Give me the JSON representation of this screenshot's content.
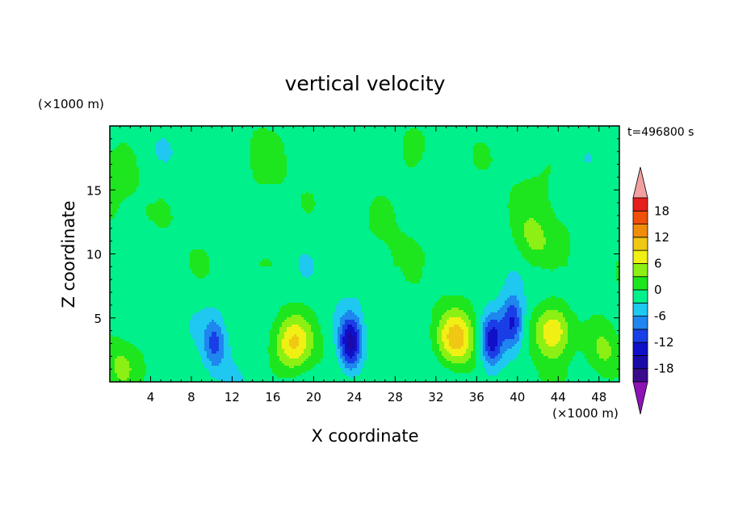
{
  "chart_data": {
    "type": "heatmap",
    "title": "vertical velocity",
    "xlabel": "X coordinate",
    "ylabel": "Z coordinate",
    "x_unit": "(×1000 m)",
    "y_unit": "(×1000 m)",
    "time_label": "t=496800 s",
    "xlim": [
      0,
      50
    ],
    "ylim": [
      0,
      20
    ],
    "x_ticks": [
      "4",
      "8",
      "12",
      "16",
      "20",
      "24",
      "28",
      "32",
      "36",
      "40",
      "44",
      "48"
    ],
    "y_ticks": [
      "5",
      "10",
      "15"
    ],
    "colorbar": {
      "range": [
        -21,
        21
      ],
      "tick_labels": [
        "18",
        "12",
        "6",
        "0",
        "-6",
        "-12",
        "-18"
      ],
      "levels": [
        {
          "from": -21,
          "to": -18,
          "color": "#3a0c8c"
        },
        {
          "from": -18,
          "to": -15,
          "color": "#1a0aa8"
        },
        {
          "from": -15,
          "to": -12,
          "color": "#1010c8"
        },
        {
          "from": -12,
          "to": -9,
          "color": "#1a3ee6"
        },
        {
          "from": -9,
          "to": -6,
          "color": "#1e86ee"
        },
        {
          "from": -6,
          "to": -3,
          "color": "#1ec8f0"
        },
        {
          "from": -3,
          "to": 0,
          "color": "#00f08c"
        },
        {
          "from": 0,
          "to": 3,
          "color": "#1ee61e"
        },
        {
          "from": 3,
          "to": 6,
          "color": "#8cf014"
        },
        {
          "from": 6,
          "to": 9,
          "color": "#f0f014"
        },
        {
          "from": 9,
          "to": 12,
          "color": "#f0c814"
        },
        {
          "from": 12,
          "to": 15,
          "color": "#f08c0a"
        },
        {
          "from": 15,
          "to": 18,
          "color": "#f0500a"
        },
        {
          "from": 18,
          "to": 21,
          "color": "#e61e1e"
        }
      ],
      "over_color": "#f0a0a0",
      "under_color": "#8c14b4"
    },
    "features": [
      {
        "kind": "updraft",
        "x": 18.0,
        "z": 3.0,
        "max": 10
      },
      {
        "kind": "downdraft",
        "x": 23.6,
        "z": 3.0,
        "min": -15
      },
      {
        "kind": "downdraft",
        "x": 10.3,
        "z": 3.0,
        "min": -8
      },
      {
        "kind": "updraft",
        "x": 34.0,
        "z": 3.3,
        "max": 12
      },
      {
        "kind": "downdraft",
        "x": 37.5,
        "z": 3.2,
        "min": -13
      },
      {
        "kind": "downdraft",
        "x": 39.5,
        "z": 4.6,
        "min": -12
      },
      {
        "kind": "updraft",
        "x": 43.5,
        "z": 4.0,
        "max": 11
      },
      {
        "kind": "updraft",
        "x": 48.5,
        "z": 2.5,
        "max": 6
      },
      {
        "kind": "updraft",
        "x": 1.0,
        "z": 1.2,
        "max": 4
      },
      {
        "kind": "updraft",
        "x": 41.5,
        "z": 11.0,
        "max": 4
      }
    ]
  }
}
